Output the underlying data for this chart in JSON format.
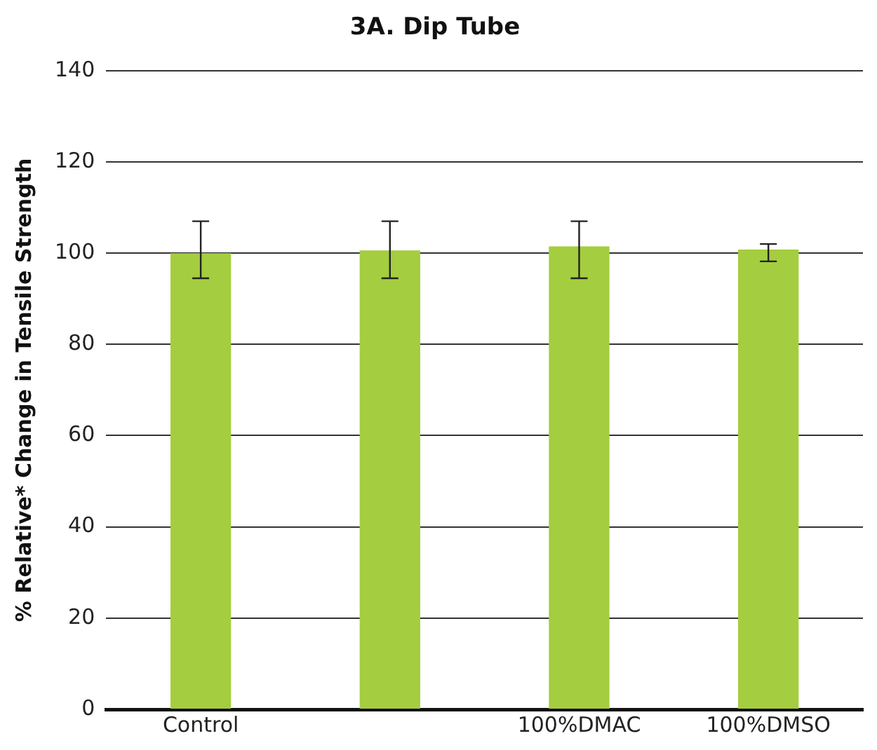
{
  "chart_data": {
    "type": "bar",
    "title": "3A. Dip Tube",
    "ylabel": "% Relative* Change in Tensile Strength",
    "categories": [
      "Control",
      null,
      "100%DMAC",
      "100%DMSO"
    ],
    "values": [
      100,
      100.6,
      101.5,
      100.8
    ],
    "errors": [
      [
        94.5,
        107
      ],
      [
        94.5,
        107
      ],
      [
        94.5,
        107
      ],
      [
        98.2,
        102
      ]
    ],
    "color": "#a4cd3f",
    "ylim": [
      0,
      140
    ],
    "yticks": [
      0,
      20,
      40,
      60,
      80,
      100,
      120,
      140
    ],
    "grid": "y",
    "legend": false
  }
}
